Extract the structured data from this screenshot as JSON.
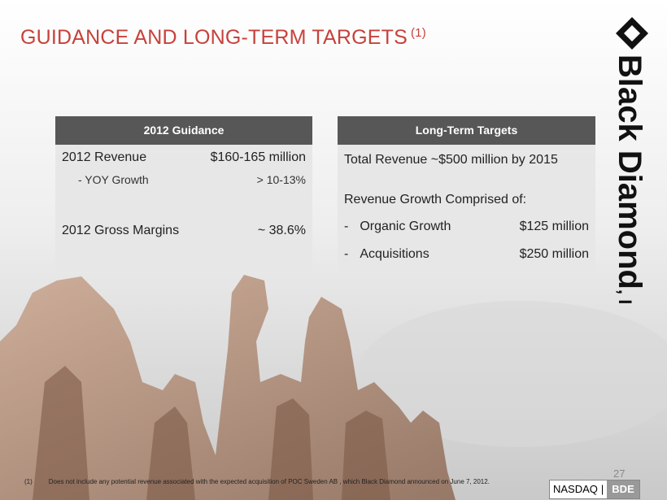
{
  "header": {
    "title": "GUIDANCE AND LONG-TERM TARGETS",
    "footnote_ref": "(1)"
  },
  "logo": {
    "text": "Black Diamond",
    "suffix": ", Inc."
  },
  "guidance": {
    "heading": "2012 Guidance",
    "rows": [
      [
        "2012 Revenue",
        "$160-165 million"
      ],
      [
        "- YOY Growth",
        "> 10-13%"
      ],
      [
        "2012 Gross Margins",
        "~ 38.6%"
      ]
    ]
  },
  "targets": {
    "heading": "Long-Term Targets",
    "total": "Total Revenue ~$500 million by 2015",
    "subheading": "Revenue Growth Comprised of:",
    "rows": [
      [
        "-",
        "Organic Growth",
        "$125 million"
      ],
      [
        "-",
        "Acquisitions",
        "$250 million"
      ]
    ]
  },
  "footnote": {
    "marker": "(1)",
    "text": "Does not include any potential revenue associated with the expected acquisition of POC Sweden AB , which Black Diamond announced on June 7, 2012."
  },
  "page_number": "27",
  "ticker": {
    "exchange": "NASDAQ",
    "separator": "|",
    "symbol": "BDE"
  }
}
